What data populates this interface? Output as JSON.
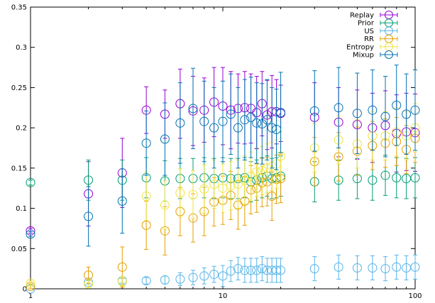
{
  "chart_data": {
    "type": "scatter",
    "x_scale": "log",
    "xlim": [
      1,
      100
    ],
    "ylim": [
      0,
      0.35
    ],
    "x_ticks": [
      1,
      10,
      100
    ],
    "x_tick_labels": [
      "1",
      "10",
      "100"
    ],
    "y_ticks": [
      0,
      0.05,
      0.1,
      0.15,
      0.2,
      0.25,
      0.3,
      0.35
    ],
    "y_tick_labels": [
      "0",
      "0.05",
      "0.1",
      "0.15",
      "0.2",
      "0.25",
      "0.3",
      "0.35"
    ],
    "grid": false,
    "error_bars": true,
    "legend_position": "top-right",
    "series": [
      {
        "name": "Replay",
        "color": "#9400d3",
        "points": [
          {
            "x": 1,
            "y": 0.072,
            "err": 0.003
          },
          {
            "x": 2,
            "y": 0.118,
            "err": 0.04
          },
          {
            "x": 3,
            "y": 0.144,
            "err": 0.043
          },
          {
            "x": 4,
            "y": 0.222,
            "err": 0.029
          },
          {
            "x": 5,
            "y": 0.217,
            "err": 0.03
          },
          {
            "x": 6,
            "y": 0.23,
            "err": 0.043
          },
          {
            "x": 7,
            "y": 0.221,
            "err": 0.043
          },
          {
            "x": 8,
            "y": 0.222,
            "err": 0.04
          },
          {
            "x": 9,
            "y": 0.232,
            "err": 0.043
          },
          {
            "x": 10,
            "y": 0.227,
            "err": 0.048
          },
          {
            "x": 11,
            "y": 0.222,
            "err": 0.048
          },
          {
            "x": 12,
            "y": 0.224,
            "err": 0.043
          },
          {
            "x": 13,
            "y": 0.225,
            "err": 0.045
          },
          {
            "x": 14,
            "y": 0.224,
            "err": 0.043
          },
          {
            "x": 15,
            "y": 0.219,
            "err": 0.045
          },
          {
            "x": 16,
            "y": 0.23,
            "err": 0.04
          },
          {
            "x": 17,
            "y": 0.216,
            "err": 0.043
          },
          {
            "x": 18,
            "y": 0.22,
            "err": 0.045
          },
          {
            "x": 19,
            "y": 0.22,
            "err": 0.04
          },
          {
            "x": 20,
            "y": 0.218,
            "err": 0.035
          },
          {
            "x": 30,
            "y": 0.213,
            "err": 0.043
          },
          {
            "x": 40,
            "y": 0.207,
            "err": 0.043
          },
          {
            "x": 50,
            "y": 0.204,
            "err": 0.043
          },
          {
            "x": 60,
            "y": 0.2,
            "err": 0.043
          },
          {
            "x": 70,
            "y": 0.203,
            "err": 0.043
          },
          {
            "x": 80,
            "y": 0.193,
            "err": 0.048
          },
          {
            "x": 90,
            "y": 0.195,
            "err": 0.048
          },
          {
            "x": 100,
            "y": 0.194,
            "err": 0.048
          }
        ]
      },
      {
        "name": "Prior",
        "color": "#009e73",
        "points": [
          {
            "x": 1,
            "y": 0.132,
            "err": 0.003
          },
          {
            "x": 2,
            "y": 0.135,
            "err": 0.025
          },
          {
            "x": 3,
            "y": 0.135,
            "err": 0.025
          },
          {
            "x": 4,
            "y": 0.138,
            "err": 0.025
          },
          {
            "x": 5,
            "y": 0.134,
            "err": 0.025
          },
          {
            "x": 6,
            "y": 0.137,
            "err": 0.025
          },
          {
            "x": 7,
            "y": 0.137,
            "err": 0.025
          },
          {
            "x": 8,
            "y": 0.138,
            "err": 0.025
          },
          {
            "x": 9,
            "y": 0.137,
            "err": 0.025
          },
          {
            "x": 10,
            "y": 0.138,
            "err": 0.025
          },
          {
            "x": 11,
            "y": 0.137,
            "err": 0.025
          },
          {
            "x": 12,
            "y": 0.137,
            "err": 0.025
          },
          {
            "x": 13,
            "y": 0.138,
            "err": 0.025
          },
          {
            "x": 14,
            "y": 0.133,
            "err": 0.025
          },
          {
            "x": 15,
            "y": 0.135,
            "err": 0.025
          },
          {
            "x": 16,
            "y": 0.138,
            "err": 0.025
          },
          {
            "x": 17,
            "y": 0.14,
            "err": 0.025
          },
          {
            "x": 18,
            "y": 0.137,
            "err": 0.025
          },
          {
            "x": 19,
            "y": 0.138,
            "err": 0.025
          },
          {
            "x": 20,
            "y": 0.14,
            "err": 0.025
          },
          {
            "x": 30,
            "y": 0.133,
            "err": 0.025
          },
          {
            "x": 40,
            "y": 0.135,
            "err": 0.025
          },
          {
            "x": 50,
            "y": 0.137,
            "err": 0.025
          },
          {
            "x": 60,
            "y": 0.135,
            "err": 0.025
          },
          {
            "x": 70,
            "y": 0.141,
            "err": 0.025
          },
          {
            "x": 80,
            "y": 0.138,
            "err": 0.025
          },
          {
            "x": 90,
            "y": 0.137,
            "err": 0.025
          },
          {
            "x": 100,
            "y": 0.138,
            "err": 0.025
          }
        ]
      },
      {
        "name": "US",
        "color": "#56b4e9",
        "points": [
          {
            "x": 1,
            "y": 0.0,
            "err": 0.0
          },
          {
            "x": 2,
            "y": 0.008,
            "err": 0.002
          },
          {
            "x": 3,
            "y": 0.01,
            "err": 0.003
          },
          {
            "x": 4,
            "y": 0.01,
            "err": 0.004
          },
          {
            "x": 5,
            "y": 0.011,
            "err": 0.005
          },
          {
            "x": 6,
            "y": 0.012,
            "err": 0.008
          },
          {
            "x": 7,
            "y": 0.014,
            "err": 0.009
          },
          {
            "x": 8,
            "y": 0.016,
            "err": 0.01
          },
          {
            "x": 9,
            "y": 0.018,
            "err": 0.01
          },
          {
            "x": 10,
            "y": 0.016,
            "err": 0.013
          },
          {
            "x": 11,
            "y": 0.022,
            "err": 0.013
          },
          {
            "x": 12,
            "y": 0.025,
            "err": 0.014
          },
          {
            "x": 13,
            "y": 0.023,
            "err": 0.015
          },
          {
            "x": 14,
            "y": 0.023,
            "err": 0.015
          },
          {
            "x": 15,
            "y": 0.023,
            "err": 0.015
          },
          {
            "x": 16,
            "y": 0.025,
            "err": 0.015
          },
          {
            "x": 17,
            "y": 0.023,
            "err": 0.015
          },
          {
            "x": 18,
            "y": 0.023,
            "err": 0.015
          },
          {
            "x": 19,
            "y": 0.023,
            "err": 0.015
          },
          {
            "x": 20,
            "y": 0.023,
            "err": 0.015
          },
          {
            "x": 30,
            "y": 0.025,
            "err": 0.015
          },
          {
            "x": 40,
            "y": 0.027,
            "err": 0.015
          },
          {
            "x": 50,
            "y": 0.026,
            "err": 0.015
          },
          {
            "x": 60,
            "y": 0.026,
            "err": 0.015
          },
          {
            "x": 70,
            "y": 0.025,
            "err": 0.015
          },
          {
            "x": 80,
            "y": 0.027,
            "err": 0.015
          },
          {
            "x": 90,
            "y": 0.026,
            "err": 0.015
          },
          {
            "x": 100,
            "y": 0.027,
            "err": 0.015
          }
        ]
      },
      {
        "name": "RR",
        "color": "#e69f00",
        "points": [
          {
            "x": 1,
            "y": 0.003,
            "err": 0.003
          },
          {
            "x": 2,
            "y": 0.017,
            "err": 0.01
          },
          {
            "x": 3,
            "y": 0.027,
            "err": 0.025
          },
          {
            "x": 4,
            "y": 0.079,
            "err": 0.03
          },
          {
            "x": 5,
            "y": 0.072,
            "err": 0.03
          },
          {
            "x": 6,
            "y": 0.096,
            "err": 0.03
          },
          {
            "x": 7,
            "y": 0.088,
            "err": 0.03
          },
          {
            "x": 8,
            "y": 0.096,
            "err": 0.03
          },
          {
            "x": 9,
            "y": 0.108,
            "err": 0.03
          },
          {
            "x": 10,
            "y": 0.11,
            "err": 0.03
          },
          {
            "x": 11,
            "y": 0.116,
            "err": 0.03
          },
          {
            "x": 12,
            "y": 0.104,
            "err": 0.03
          },
          {
            "x": 13,
            "y": 0.109,
            "err": 0.03
          },
          {
            "x": 14,
            "y": 0.123,
            "err": 0.03
          },
          {
            "x": 15,
            "y": 0.125,
            "err": 0.03
          },
          {
            "x": 16,
            "y": 0.132,
            "err": 0.03
          },
          {
            "x": 17,
            "y": 0.133,
            "err": 0.03
          },
          {
            "x": 18,
            "y": 0.115,
            "err": 0.03
          },
          {
            "x": 19,
            "y": 0.136,
            "err": 0.03
          },
          {
            "x": 20,
            "y": 0.137,
            "err": 0.03
          },
          {
            "x": 30,
            "y": 0.158,
            "err": 0.03
          },
          {
            "x": 40,
            "y": 0.164,
            "err": 0.03
          },
          {
            "x": 50,
            "y": 0.171,
            "err": 0.03
          },
          {
            "x": 60,
            "y": 0.178,
            "err": 0.03
          },
          {
            "x": 70,
            "y": 0.181,
            "err": 0.03
          },
          {
            "x": 80,
            "y": 0.183,
            "err": 0.03
          },
          {
            "x": 90,
            "y": 0.173,
            "err": 0.03
          },
          {
            "x": 100,
            "y": 0.187,
            "err": 0.03
          }
        ]
      },
      {
        "name": "Entropy",
        "color": "#f0e442",
        "points": [
          {
            "x": 1,
            "y": 0.007,
            "err": 0.003
          },
          {
            "x": 2,
            "y": 0.006,
            "err": 0.005
          },
          {
            "x": 3,
            "y": 0.009,
            "err": 0.006
          },
          {
            "x": 4,
            "y": 0.115,
            "err": 0.03
          },
          {
            "x": 5,
            "y": 0.104,
            "err": 0.03
          },
          {
            "x": 6,
            "y": 0.119,
            "err": 0.03
          },
          {
            "x": 7,
            "y": 0.117,
            "err": 0.03
          },
          {
            "x": 8,
            "y": 0.124,
            "err": 0.03
          },
          {
            "x": 9,
            "y": 0.13,
            "err": 0.03
          },
          {
            "x": 10,
            "y": 0.125,
            "err": 0.03
          },
          {
            "x": 11,
            "y": 0.128,
            "err": 0.03
          },
          {
            "x": 12,
            "y": 0.13,
            "err": 0.03
          },
          {
            "x": 13,
            "y": 0.135,
            "err": 0.03
          },
          {
            "x": 14,
            "y": 0.14,
            "err": 0.03
          },
          {
            "x": 15,
            "y": 0.145,
            "err": 0.03
          },
          {
            "x": 16,
            "y": 0.147,
            "err": 0.03
          },
          {
            "x": 17,
            "y": 0.15,
            "err": 0.03
          },
          {
            "x": 18,
            "y": 0.152,
            "err": 0.03
          },
          {
            "x": 19,
            "y": 0.155,
            "err": 0.03
          },
          {
            "x": 20,
            "y": 0.165,
            "err": 0.03
          },
          {
            "x": 30,
            "y": 0.175,
            "err": 0.03
          },
          {
            "x": 40,
            "y": 0.185,
            "err": 0.03
          },
          {
            "x": 50,
            "y": 0.18,
            "err": 0.03
          },
          {
            "x": 60,
            "y": 0.19,
            "err": 0.03
          },
          {
            "x": 70,
            "y": 0.19,
            "err": 0.03
          },
          {
            "x": 80,
            "y": 0.195,
            "err": 0.03
          },
          {
            "x": 90,
            "y": 0.19,
            "err": 0.03
          },
          {
            "x": 100,
            "y": 0.2,
            "err": 0.03
          }
        ]
      },
      {
        "name": "Mixup",
        "color": "#0072b2",
        "points": [
          {
            "x": 1,
            "y": 0.068,
            "err": 0.003
          },
          {
            "x": 2,
            "y": 0.09,
            "err": 0.037
          },
          {
            "x": 3,
            "y": 0.109,
            "err": 0.04
          },
          {
            "x": 4,
            "y": 0.181,
            "err": 0.04
          },
          {
            "x": 5,
            "y": 0.186,
            "err": 0.045
          },
          {
            "x": 6,
            "y": 0.206,
            "err": 0.05
          },
          {
            "x": 7,
            "y": 0.224,
            "err": 0.05
          },
          {
            "x": 8,
            "y": 0.208,
            "err": 0.05
          },
          {
            "x": 9,
            "y": 0.2,
            "err": 0.05
          },
          {
            "x": 10,
            "y": 0.208,
            "err": 0.05
          },
          {
            "x": 11,
            "y": 0.217,
            "err": 0.05
          },
          {
            "x": 12,
            "y": 0.2,
            "err": 0.05
          },
          {
            "x": 13,
            "y": 0.21,
            "err": 0.05
          },
          {
            "x": 14,
            "y": 0.213,
            "err": 0.05
          },
          {
            "x": 15,
            "y": 0.206,
            "err": 0.05
          },
          {
            "x": 16,
            "y": 0.205,
            "err": 0.05
          },
          {
            "x": 17,
            "y": 0.21,
            "err": 0.05
          },
          {
            "x": 18,
            "y": 0.2,
            "err": 0.05
          },
          {
            "x": 19,
            "y": 0.198,
            "err": 0.05
          },
          {
            "x": 20,
            "y": 0.219,
            "err": 0.05
          },
          {
            "x": 30,
            "y": 0.221,
            "err": 0.05
          },
          {
            "x": 40,
            "y": 0.225,
            "err": 0.05
          },
          {
            "x": 50,
            "y": 0.218,
            "err": 0.05
          },
          {
            "x": 60,
            "y": 0.222,
            "err": 0.05
          },
          {
            "x": 70,
            "y": 0.214,
            "err": 0.05
          },
          {
            "x": 80,
            "y": 0.228,
            "err": 0.05
          },
          {
            "x": 90,
            "y": 0.217,
            "err": 0.05
          },
          {
            "x": 100,
            "y": 0.222,
            "err": 0.05
          }
        ]
      }
    ]
  }
}
